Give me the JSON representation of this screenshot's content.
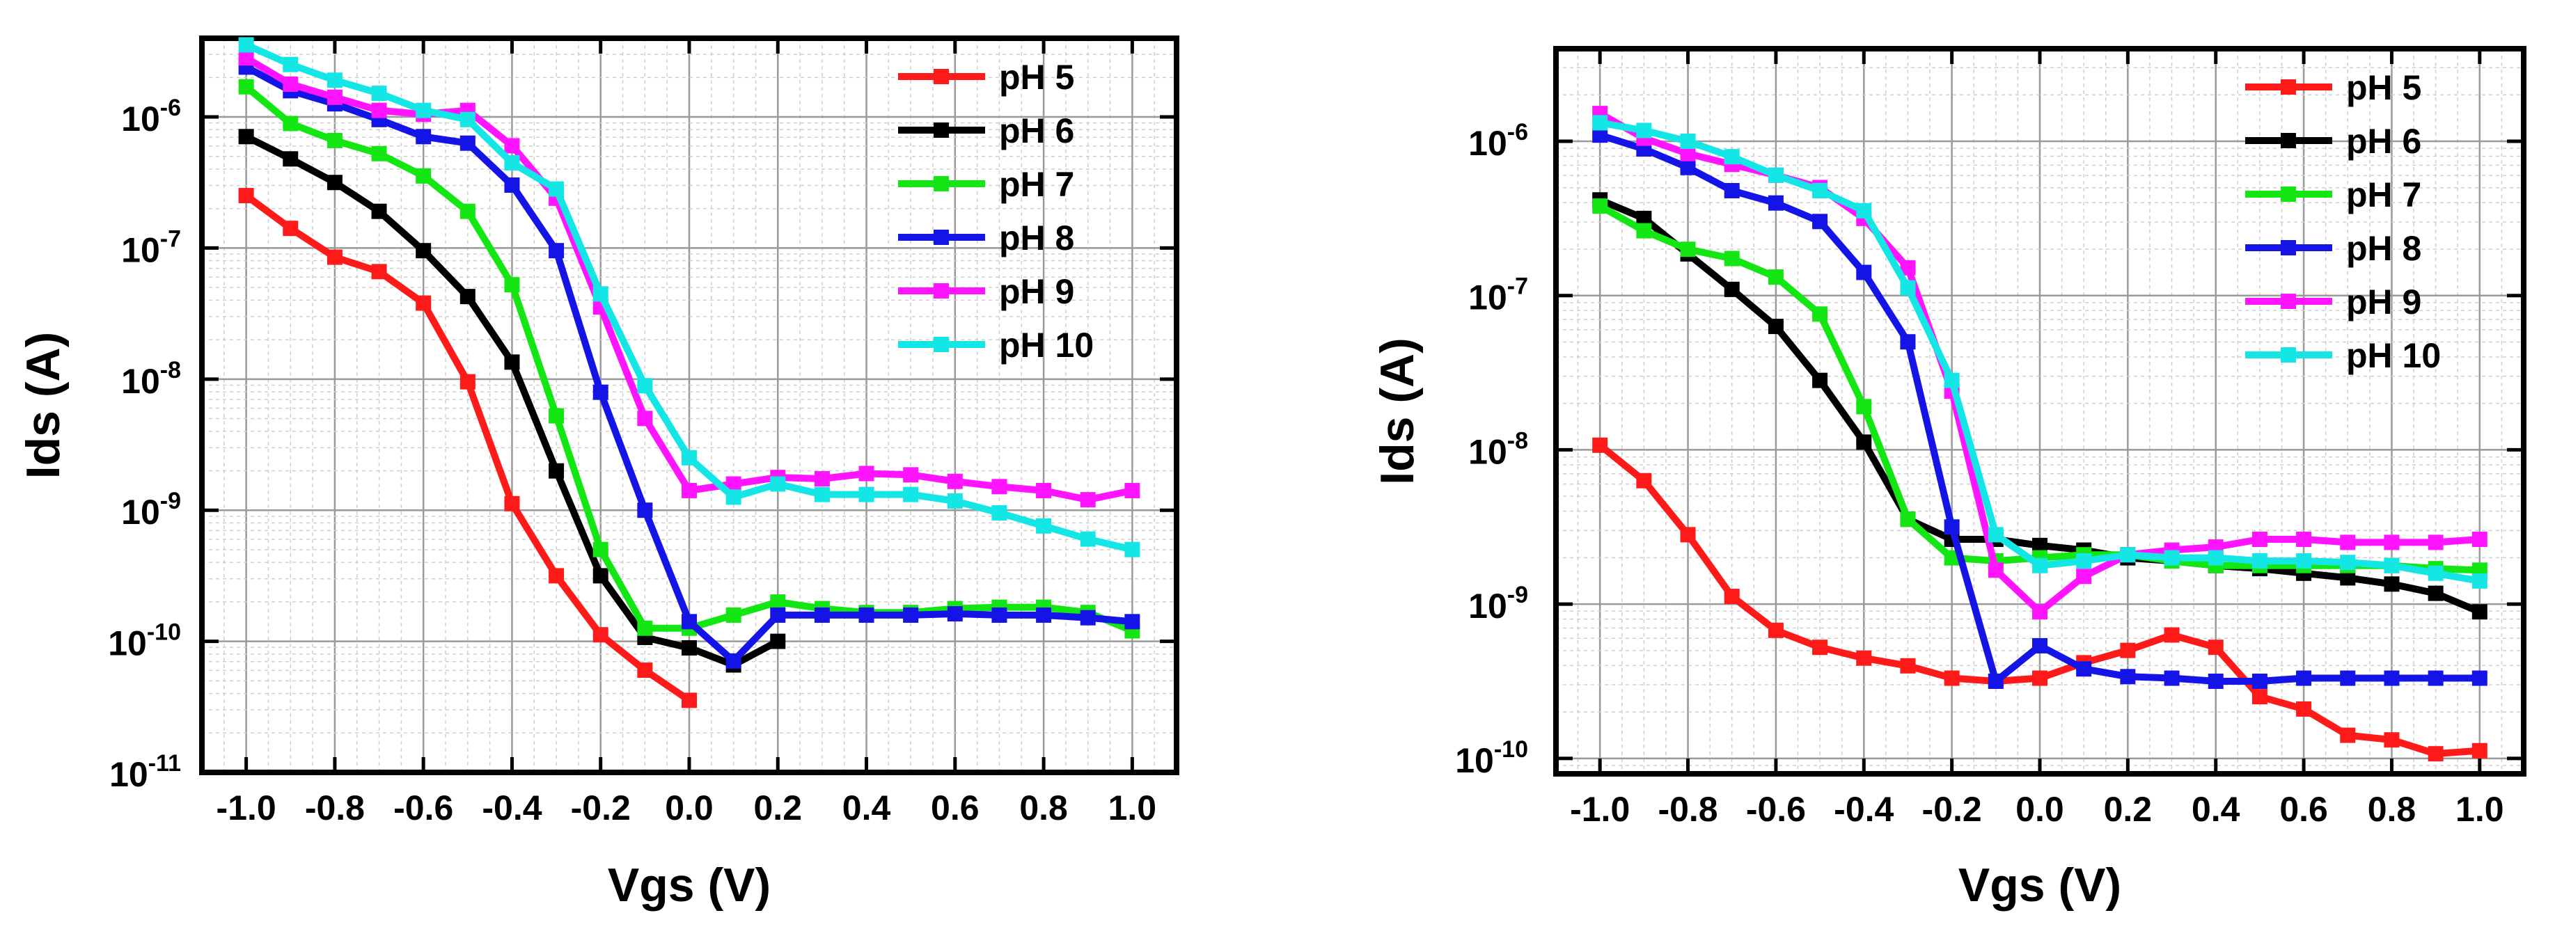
{
  "chart_data": [
    {
      "type": "line",
      "title": "",
      "xlabel": "Vgs (V)",
      "ylabel": "Ids (A)",
      "xlim": [
        -1.1,
        1.1
      ],
      "ylog_range": [
        -11,
        -5.4
      ],
      "x_ticks": [
        {
          "value": -1.0,
          "label": "-1.0"
        },
        {
          "value": -0.8,
          "label": "-0.8"
        },
        {
          "value": -0.6,
          "label": "-0.6"
        },
        {
          "value": -0.4,
          "label": "-0.4"
        },
        {
          "value": -0.2,
          "label": "-0.2"
        },
        {
          "value": 0.0,
          "label": "0.0"
        },
        {
          "value": 0.2,
          "label": "0.2"
        },
        {
          "value": 0.4,
          "label": "0.4"
        },
        {
          "value": 0.6,
          "label": "0.6"
        },
        {
          "value": 0.8,
          "label": "0.8"
        },
        {
          "value": 1.0,
          "label": "1.0"
        }
      ],
      "y_ticks": [
        {
          "exp": -6,
          "base": "10",
          "sup": "-6"
        },
        {
          "exp": -7,
          "base": "10",
          "sup": "-7"
        },
        {
          "exp": -8,
          "base": "10",
          "sup": "-8"
        },
        {
          "exp": -9,
          "base": "10",
          "sup": "-9"
        },
        {
          "exp": -10,
          "base": "10",
          "sup": "-10"
        },
        {
          "exp": -11,
          "base": "10",
          "sup": "-11"
        }
      ],
      "grid": true,
      "legend_position": "top-right",
      "series": [
        {
          "name": "pH 5",
          "color": "#ff1a1a",
          "x": [
            -1.0,
            -0.9,
            -0.8,
            -0.7,
            -0.6,
            -0.5,
            -0.4,
            -0.3,
            -0.2,
            -0.1,
            0.0
          ],
          "log_values": [
            -6.6,
            -6.85,
            -7.07,
            -7.18,
            -7.42,
            -8.02,
            -8.95,
            -9.5,
            -9.95,
            -10.22,
            -10.45
          ]
        },
        {
          "name": "pH 6",
          "color": "#000000",
          "x": [
            -1.0,
            -0.9,
            -0.8,
            -0.7,
            -0.6,
            -0.5,
            -0.4,
            -0.3,
            -0.2,
            -0.1,
            0.0,
            0.1,
            0.2
          ],
          "log_values": [
            -6.15,
            -6.32,
            -6.5,
            -6.72,
            -7.02,
            -7.37,
            -7.87,
            -8.7,
            -9.5,
            -9.97,
            -10.05,
            -10.18,
            -10.0
          ]
        },
        {
          "name": "pH 7",
          "color": "#14e614",
          "x": [
            -1.0,
            -0.9,
            -0.8,
            -0.7,
            -0.6,
            -0.5,
            -0.4,
            -0.3,
            -0.2,
            -0.1,
            0.0,
            0.1,
            0.2,
            0.3,
            0.4,
            0.5,
            0.6,
            0.7,
            0.8,
            0.9,
            1.0
          ],
          "log_values": [
            -5.77,
            -6.05,
            -6.18,
            -6.28,
            -6.45,
            -6.72,
            -7.28,
            -8.28,
            -9.3,
            -9.9,
            -9.9,
            -9.8,
            -9.7,
            -9.75,
            -9.78,
            -9.78,
            -9.75,
            -9.74,
            -9.74,
            -9.78,
            -9.92
          ]
        },
        {
          "name": "pH 8",
          "color": "#1414e6",
          "x": [
            -1.0,
            -0.9,
            -0.8,
            -0.7,
            -0.6,
            -0.5,
            -0.4,
            -0.3,
            -0.2,
            -0.1,
            0.0,
            0.1,
            0.2,
            0.3,
            0.4,
            0.5,
            0.6,
            0.7,
            0.8,
            0.9,
            1.0
          ],
          "log_values": [
            -5.62,
            -5.8,
            -5.9,
            -6.02,
            -6.15,
            -6.2,
            -6.52,
            -7.02,
            -8.1,
            -9.0,
            -9.85,
            -10.15,
            -9.8,
            -9.8,
            -9.8,
            -9.8,
            -9.79,
            -9.8,
            -9.8,
            -9.82,
            -9.85
          ]
        },
        {
          "name": "pH 9",
          "color": "#ff14ff",
          "x": [
            -1.0,
            -0.9,
            -0.8,
            -0.7,
            -0.6,
            -0.5,
            -0.4,
            -0.3,
            -0.2,
            -0.1,
            0.0,
            0.1,
            0.2,
            0.3,
            0.4,
            0.5,
            0.6,
            0.7,
            0.8,
            0.9,
            1.0
          ],
          "log_values": [
            -5.55,
            -5.75,
            -5.85,
            -5.95,
            -5.98,
            -5.95,
            -6.22,
            -6.62,
            -7.45,
            -8.3,
            -8.85,
            -8.8,
            -8.75,
            -8.76,
            -8.72,
            -8.73,
            -8.78,
            -8.82,
            -8.85,
            -8.92,
            -8.85
          ]
        },
        {
          "name": "pH 10",
          "color": "#14e6e6",
          "x": [
            -1.0,
            -0.9,
            -0.8,
            -0.7,
            -0.6,
            -0.5,
            -0.4,
            -0.3,
            -0.2,
            -0.1,
            0.0,
            0.1,
            0.2,
            0.3,
            0.4,
            0.5,
            0.6,
            0.7,
            0.8,
            0.9,
            1.0
          ],
          "log_values": [
            -5.45,
            -5.6,
            -5.72,
            -5.82,
            -5.95,
            -6.02,
            -6.35,
            -6.55,
            -7.35,
            -8.05,
            -8.6,
            -8.9,
            -8.8,
            -8.88,
            -8.88,
            -8.88,
            -8.93,
            -9.02,
            -9.12,
            -9.22,
            -9.3
          ]
        }
      ]
    },
    {
      "type": "line",
      "title": "",
      "xlabel": "Vgs (V)",
      "ylabel": "Ids (A)",
      "xlim": [
        -1.1,
        1.1
      ],
      "ylog_range": [
        -10.1,
        -5.4
      ],
      "x_ticks": [
        {
          "value": -1.0,
          "label": "-1.0"
        },
        {
          "value": -0.8,
          "label": "-0.8"
        },
        {
          "value": -0.6,
          "label": "-0.6"
        },
        {
          "value": -0.4,
          "label": "-0.4"
        },
        {
          "value": -0.2,
          "label": "-0.2"
        },
        {
          "value": 0.0,
          "label": "0.0"
        },
        {
          "value": 0.2,
          "label": "0.2"
        },
        {
          "value": 0.4,
          "label": "0.4"
        },
        {
          "value": 0.6,
          "label": "0.6"
        },
        {
          "value": 0.8,
          "label": "0.8"
        },
        {
          "value": 1.0,
          "label": "1.0"
        }
      ],
      "y_ticks": [
        {
          "exp": -6,
          "base": "10",
          "sup": "-6"
        },
        {
          "exp": -7,
          "base": "10",
          "sup": "-7"
        },
        {
          "exp": -8,
          "base": "10",
          "sup": "-8"
        },
        {
          "exp": -9,
          "base": "10",
          "sup": "-9"
        },
        {
          "exp": -10,
          "base": "10",
          "sup": "-10"
        }
      ],
      "grid": true,
      "legend_position": "top-right",
      "series": [
        {
          "name": "pH 5",
          "color": "#ff1a1a",
          "x": [
            -1.0,
            -0.9,
            -0.8,
            -0.7,
            -0.6,
            -0.5,
            -0.4,
            -0.3,
            -0.2,
            -0.1,
            0.0,
            0.1,
            0.2,
            0.3,
            0.4,
            0.5,
            0.6,
            0.7,
            0.8,
            0.9,
            1.0
          ],
          "log_values": [
            -7.97,
            -8.2,
            -8.55,
            -8.95,
            -9.17,
            -9.28,
            -9.35,
            -9.4,
            -9.48,
            -9.5,
            -9.48,
            -9.38,
            -9.3,
            -9.2,
            -9.28,
            -9.6,
            -9.68,
            -9.85,
            -9.88,
            -9.97,
            -9.95
          ]
        },
        {
          "name": "pH 6",
          "color": "#000000",
          "x": [
            -1.0,
            -0.9,
            -0.8,
            -0.7,
            -0.6,
            -0.5,
            -0.4,
            -0.3,
            -0.2,
            -0.1,
            0.0,
            0.1,
            0.2,
            0.3,
            0.4,
            0.5,
            0.6,
            0.7,
            0.8,
            0.9,
            1.0
          ],
          "log_values": [
            -6.38,
            -6.5,
            -6.73,
            -6.96,
            -7.2,
            -7.55,
            -7.95,
            -8.45,
            -8.58,
            -8.58,
            -8.62,
            -8.65,
            -8.7,
            -8.72,
            -8.75,
            -8.77,
            -8.8,
            -8.83,
            -8.87,
            -8.93,
            -9.05
          ]
        },
        {
          "name": "pH 7",
          "color": "#14e614",
          "x": [
            -1.0,
            -0.9,
            -0.8,
            -0.7,
            -0.6,
            -0.5,
            -0.4,
            -0.3,
            -0.2,
            -0.1,
            0.0,
            0.1,
            0.2,
            0.3,
            0.4,
            0.5,
            0.6,
            0.7,
            0.8,
            0.9,
            1.0
          ],
          "log_values": [
            -6.42,
            -6.58,
            -6.7,
            -6.76,
            -6.88,
            -7.12,
            -7.72,
            -8.45,
            -8.7,
            -8.72,
            -8.7,
            -8.68,
            -8.68,
            -8.72,
            -8.75,
            -8.75,
            -8.75,
            -8.75,
            -8.75,
            -8.77,
            -8.78
          ]
        },
        {
          "name": "pH 8",
          "color": "#1414e6",
          "x": [
            -1.0,
            -0.9,
            -0.8,
            -0.7,
            -0.6,
            -0.5,
            -0.4,
            -0.3,
            -0.2,
            -0.1,
            0.0,
            0.1,
            0.2,
            0.3,
            0.4,
            0.5,
            0.6,
            0.7,
            0.8,
            0.9,
            1.0
          ],
          "log_values": [
            -5.96,
            -6.05,
            -6.17,
            -6.32,
            -6.4,
            -6.52,
            -6.85,
            -7.3,
            -8.5,
            -9.5,
            -9.27,
            -9.42,
            -9.47,
            -9.48,
            -9.5,
            -9.5,
            -9.48,
            -9.48,
            -9.48,
            -9.48,
            -9.48
          ]
        },
        {
          "name": "pH 9",
          "color": "#ff14ff",
          "x": [
            -1.0,
            -0.9,
            -0.8,
            -0.7,
            -0.6,
            -0.5,
            -0.4,
            -0.3,
            -0.2,
            -0.1,
            0.0,
            0.1,
            0.2,
            0.3,
            0.4,
            0.5,
            0.6,
            0.7,
            0.8,
            0.9,
            1.0
          ],
          "log_values": [
            -5.82,
            -5.98,
            -6.08,
            -6.15,
            -6.22,
            -6.3,
            -6.5,
            -6.82,
            -7.62,
            -8.78,
            -9.05,
            -8.82,
            -8.68,
            -8.65,
            -8.63,
            -8.58,
            -8.58,
            -8.6,
            -8.6,
            -8.6,
            -8.58
          ]
        },
        {
          "name": "pH 10",
          "color": "#14e6e6",
          "x": [
            -1.0,
            -0.9,
            -0.8,
            -0.7,
            -0.6,
            -0.5,
            -0.4,
            -0.3,
            -0.2,
            -0.1,
            0.0,
            0.1,
            0.2,
            0.3,
            0.4,
            0.5,
            0.6,
            0.7,
            0.8,
            0.9,
            1.0
          ],
          "log_values": [
            -5.88,
            -5.93,
            -6.0,
            -6.1,
            -6.22,
            -6.32,
            -6.45,
            -6.95,
            -7.55,
            -8.55,
            -8.75,
            -8.72,
            -8.68,
            -8.7,
            -8.7,
            -8.72,
            -8.72,
            -8.73,
            -8.75,
            -8.8,
            -8.85
          ]
        }
      ]
    }
  ]
}
